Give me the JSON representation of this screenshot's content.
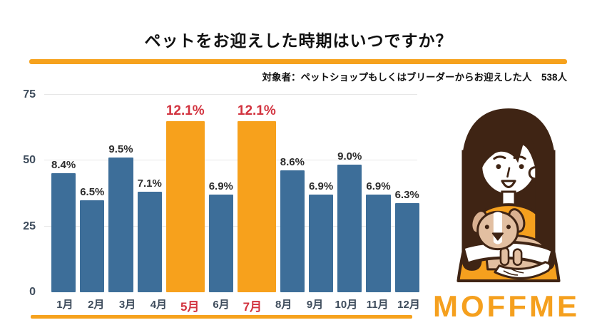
{
  "header": {
    "title": "ペットをお迎えした時期はいつですか？",
    "subtitle": "対象者：ペットショップもしくはブリーダーからお迎えした人　538人"
  },
  "branding": {
    "logo_text": "MOFFME",
    "illustration": "woman-holding-dog"
  },
  "colors": {
    "accent_orange": "#F6A21D",
    "bar_blue": "#3D6E99",
    "bar_highlight_orange": "#F7A11C",
    "highlight_red": "#D2333F",
    "axis_text": "#3E4C5C",
    "gridline": "#E7E7E7"
  },
  "chart_data": {
    "type": "bar",
    "title": "ペットをお迎えした時期はいつですか？",
    "note": "対象者：ペットショップもしくはブリーダーからお迎えした人　538人",
    "respondents": 538,
    "categories": [
      "1月",
      "2月",
      "3月",
      "4月",
      "5月",
      "6月",
      "7月",
      "8月",
      "9月",
      "10月",
      "11月",
      "12月"
    ],
    "values_percent": [
      8.4,
      6.5,
      9.5,
      7.1,
      12.1,
      6.9,
      12.1,
      8.6,
      6.9,
      9.0,
      6.9,
      6.3
    ],
    "value_labels": [
      "8.4%",
      "6.5%",
      "9.5%",
      "7.1%",
      "12.1%",
      "6.9%",
      "12.1%",
      "8.6%",
      "6.9%",
      "9.0%",
      "6.9%",
      "6.3%"
    ],
    "highlight_indexes": [
      4,
      6
    ],
    "highlighted_categories": [
      "5月",
      "7月"
    ],
    "xlabel": "",
    "ylabel": "",
    "ylim": [
      0,
      75
    ],
    "yticks": [
      "0",
      "25",
      "50",
      "75"
    ],
    "grid": true,
    "legend": false
  }
}
